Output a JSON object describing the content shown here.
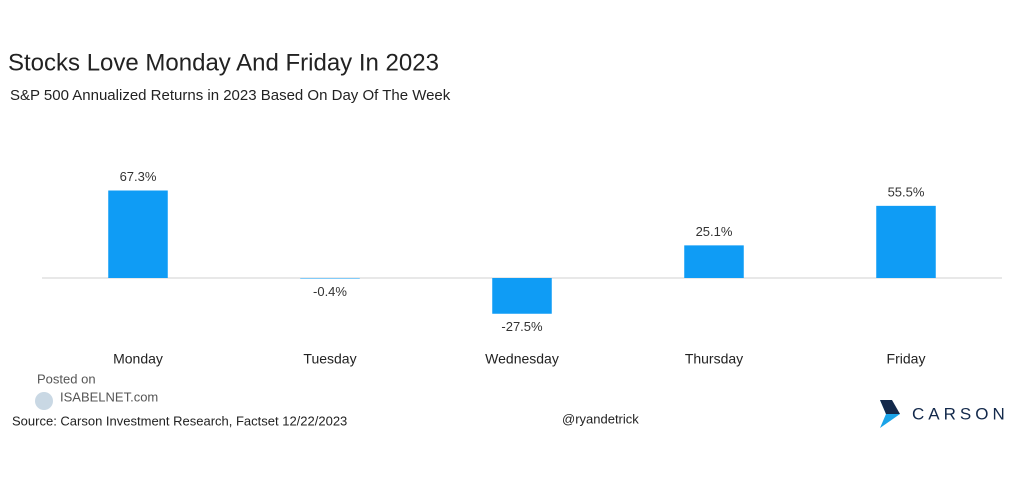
{
  "chart_data": {
    "type": "bar",
    "title": "Stocks Love Monday And Friday In 2023",
    "subtitle": "S&P 500 Annualized Returns in 2023 Based On Day Of The Week",
    "categories": [
      "Monday",
      "Tuesday",
      "Wednesday",
      "Thursday",
      "Friday"
    ],
    "values": [
      67.3,
      -0.4,
      -27.5,
      25.1,
      55.5
    ],
    "value_labels": [
      "67.3%",
      "-0.4%",
      "-27.5%",
      "25.1%",
      "55.5%"
    ],
    "color": "#0f9cf5",
    "ylim": [
      -40,
      80
    ],
    "source": "Source: Carson Investment Research, Factset 12/22/2023",
    "credit": "@ryandetrick",
    "watermark": [
      "Posted on",
      "ISABELNET.com"
    ],
    "logo_text": "CARSON"
  }
}
